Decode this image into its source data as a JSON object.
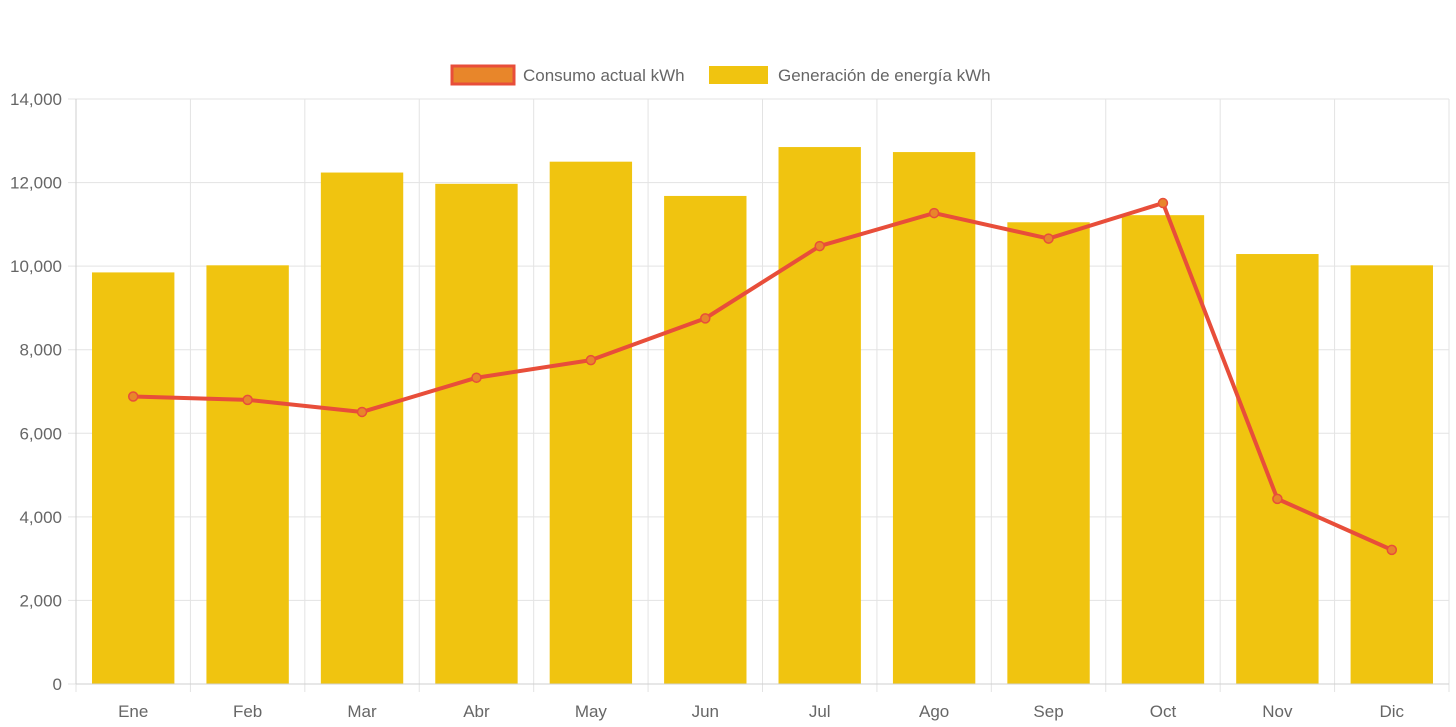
{
  "chart_data": {
    "type": "bar",
    "categories": [
      "Ene",
      "Feb",
      "Mar",
      "Abr",
      "May",
      "Jun",
      "Jul",
      "Ago",
      "Sep",
      "Oct",
      "Nov",
      "Dic"
    ],
    "series": [
      {
        "name": "Generación de energía kWh",
        "type": "bar",
        "color": "#f0c410",
        "values": [
          9850,
          10020,
          12240,
          11970,
          12500,
          11680,
          12850,
          12730,
          11050,
          11220,
          10290,
          10020
        ]
      },
      {
        "name": "Consumo actual kWh",
        "type": "line",
        "color": "#e84e3a",
        "fill": "#e8862a",
        "values": [
          6880,
          6800,
          6510,
          7330,
          7750,
          8750,
          10480,
          11270,
          10660,
          11510,
          4430,
          3210
        ]
      }
    ],
    "ylim": [
      0,
      14000
    ],
    "yticks": [
      "0",
      "2,000",
      "4,000",
      "6,000",
      "8,000",
      "10,000",
      "12,000",
      "14,000"
    ],
    "grid": true,
    "legend_position": "top"
  }
}
